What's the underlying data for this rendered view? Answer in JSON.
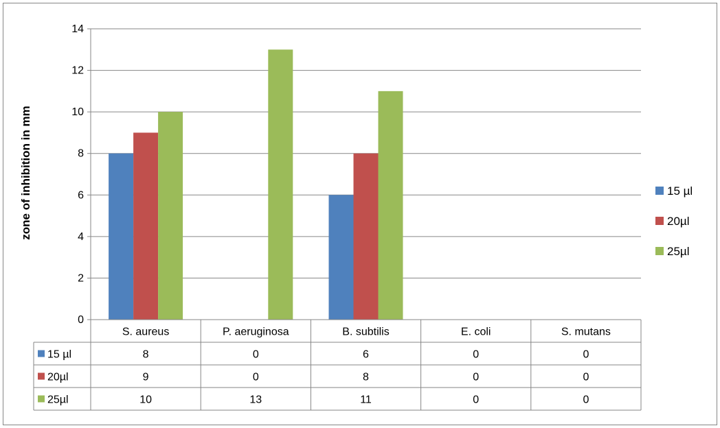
{
  "chart_data": {
    "type": "bar",
    "title": "",
    "xlabel": "",
    "ylabel": "zone of inhibition in mm",
    "ylim": [
      0,
      14
    ],
    "yticks": [
      0,
      2,
      4,
      6,
      8,
      10,
      12,
      14
    ],
    "grid": true,
    "legend_position": "right",
    "categories": [
      "S. aureus",
      "P. aeruginosa",
      "B. subtilis",
      "E. coli",
      "S. mutans"
    ],
    "series": [
      {
        "name": "15 µl",
        "color": "#4F81BD",
        "values": [
          8,
          0,
          6,
          0,
          0
        ]
      },
      {
        "name": "20µl",
        "color": "#C0504D",
        "values": [
          9,
          0,
          8,
          0,
          0
        ]
      },
      {
        "name": "25µl",
        "color": "#9BBB59",
        "values": [
          10,
          13,
          11,
          0,
          0
        ]
      }
    ],
    "data_table": true
  }
}
